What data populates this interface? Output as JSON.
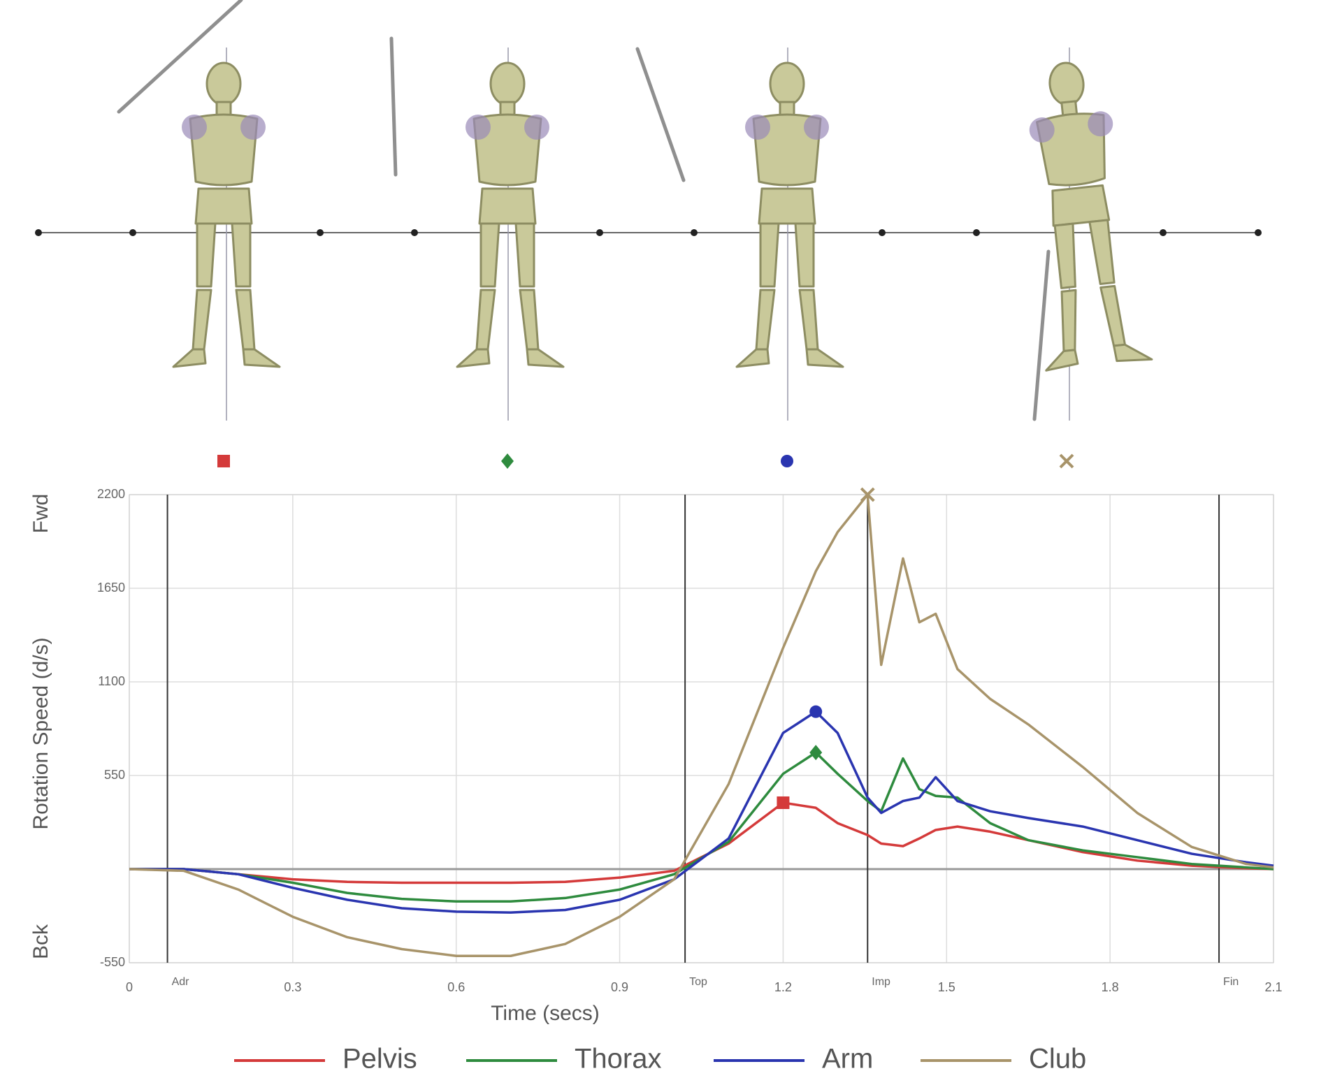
{
  "chart_data": {
    "type": "line",
    "x_label": "Time (secs)",
    "y_label": "Rotation Speed (d/s)",
    "y_top_label": "Fwd",
    "y_bottom_label": "Bck",
    "xlim": [
      0,
      2.1
    ],
    "xticks": [
      0.0,
      0.3,
      0.6,
      0.9,
      1.2,
      1.5,
      1.8,
      2.1
    ],
    "ylim": [
      -550,
      2200
    ],
    "yticks": [
      -550,
      550,
      1100,
      1650,
      2200
    ],
    "grid": true,
    "events": [
      {
        "label": "Adr",
        "x": 0.07
      },
      {
        "label": "Top",
        "x": 1.02
      },
      {
        "label": "Imp",
        "x": 1.355
      },
      {
        "label": "Fin",
        "x": 2.0
      }
    ],
    "x": [
      0,
      0.1,
      0.2,
      0.3,
      0.4,
      0.5,
      0.6,
      0.7,
      0.8,
      0.9,
      1.0,
      1.1,
      1.2,
      1.26,
      1.3,
      1.355,
      1.38,
      1.42,
      1.45,
      1.48,
      1.52,
      1.58,
      1.65,
      1.75,
      1.85,
      1.95,
      2.05,
      2.1
    ],
    "series": [
      {
        "name": "Pelvis",
        "color": "#d43a3a",
        "marker": "square",
        "values": [
          0,
          0,
          -30,
          -60,
          -75,
          -80,
          -80,
          -80,
          -75,
          -50,
          -10,
          150,
          390,
          360,
          270,
          200,
          150,
          135,
          180,
          230,
          250,
          220,
          170,
          100,
          50,
          20,
          5,
          0
        ]
      },
      {
        "name": "Thorax",
        "color": "#2e8b3e",
        "marker": "diamond",
        "values": [
          0,
          0,
          -30,
          -80,
          -140,
          -175,
          -190,
          -190,
          -170,
          -120,
          -30,
          160,
          560,
          685,
          560,
          400,
          340,
          650,
          470,
          430,
          420,
          270,
          170,
          110,
          70,
          30,
          10,
          0
        ]
      },
      {
        "name": "Arm",
        "color": "#2a35b0",
        "marker": "circle",
        "values": [
          0,
          0,
          -30,
          -110,
          -180,
          -230,
          -250,
          -255,
          -240,
          -180,
          -60,
          180,
          800,
          925,
          800,
          420,
          330,
          400,
          420,
          540,
          400,
          340,
          300,
          250,
          170,
          90,
          40,
          20
        ]
      },
      {
        "name": "Club",
        "color": "#a8946a",
        "marker": "x",
        "values": [
          0,
          -10,
          -120,
          -280,
          -400,
          -470,
          -510,
          -510,
          -440,
          -280,
          -60,
          500,
          1300,
          1750,
          1980,
          2200,
          1200,
          1825,
          1450,
          1500,
          1175,
          1000,
          850,
          600,
          330,
          130,
          30,
          10
        ]
      }
    ]
  }
}
